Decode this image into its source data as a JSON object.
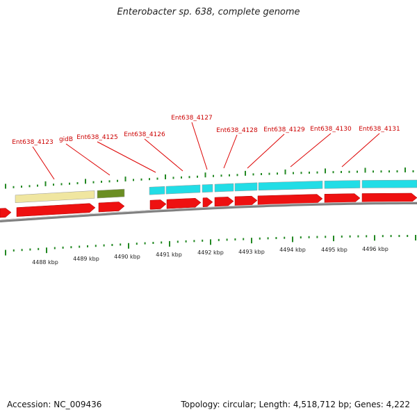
{
  "title": "Enterobacter sp. 638, complete genome",
  "footer": {
    "accession_label": "Accession:",
    "accession": "NC_009436",
    "topology_text": "Topology: circular; Length: 4,518,712 bp; Genes: 4,222"
  },
  "colors": {
    "label_red": "#cc0000",
    "gene_red": "#ee1111",
    "gene_cyan": "#22dde6",
    "gene_khaki": "#f0e6a0",
    "gene_olive": "#6b8e23",
    "tick_green": "#228822",
    "backbone_gray": "#808080"
  },
  "scale_labels": [
    "4488 kbp",
    "4489 kbp",
    "4490 kbp",
    "4491 kbp",
    "4492 kbp",
    "4493 kbp",
    "4494 kbp",
    "4495 kbp",
    "4496 kbp"
  ],
  "gene_labels": [
    "Ent638_4123",
    "gidB",
    "Ent638_4125",
    "Ent638_4126",
    "Ent638_4127",
    "Ent638_4128",
    "Ent638_4129",
    "Ent638_4130",
    "Ent638_4131"
  ]
}
